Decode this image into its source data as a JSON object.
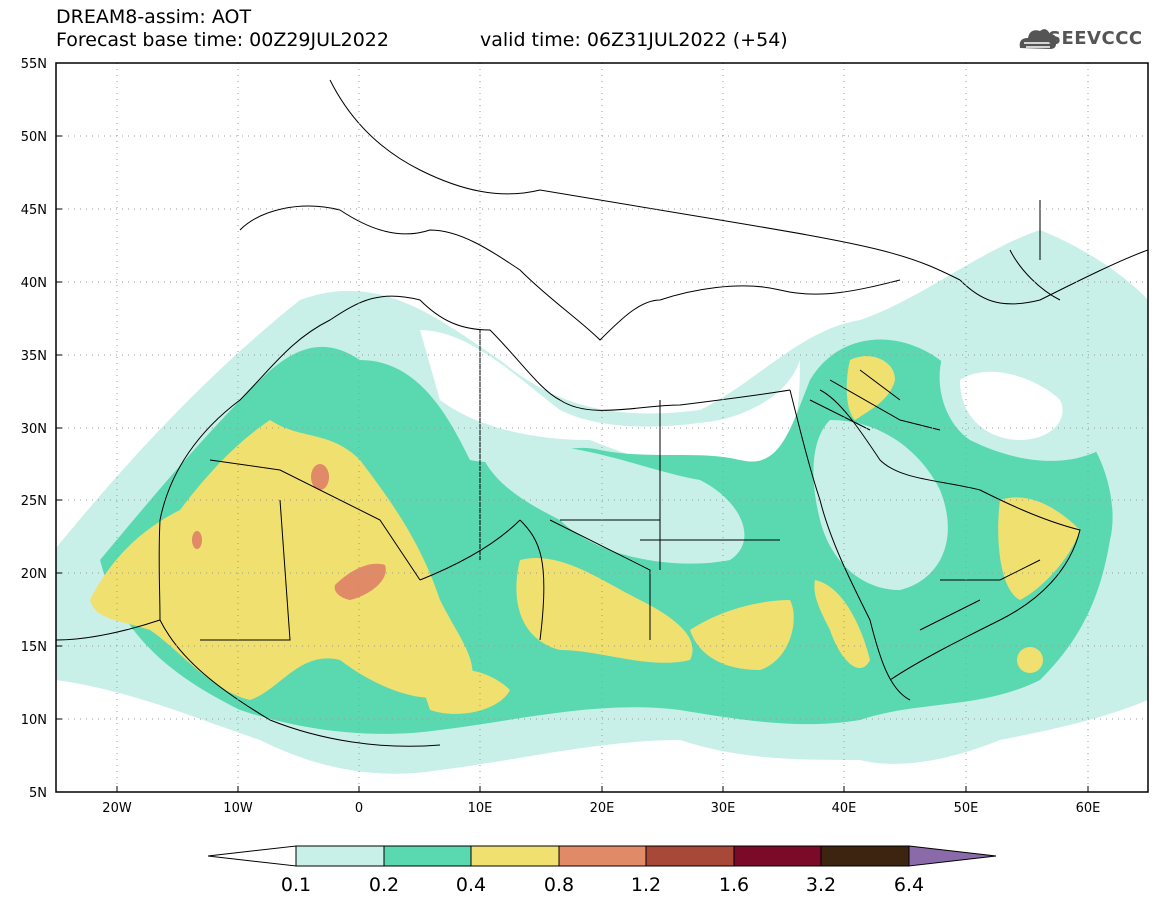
{
  "header": {
    "title": "DREAM8-assim: AOT",
    "forecast_base": "Forecast base time: 00Z29JUL2022",
    "valid_time": "valid time: 06Z31JUL2022 (+54)"
  },
  "logo": {
    "text": "SEEVCCC",
    "icon": "cloud-icon"
  },
  "map": {
    "lon_range": [
      -25,
      65
    ],
    "lat_range": [
      5,
      55
    ],
    "lat_labels": [
      "55N",
      "50N",
      "45N",
      "40N",
      "35N",
      "30N",
      "25N",
      "20N",
      "15N",
      "10N",
      "5N"
    ],
    "lon_labels": [
      "20W",
      "10W",
      "0",
      "10E",
      "20E",
      "30E",
      "40E",
      "50E",
      "60E"
    ]
  },
  "colorbar": {
    "labels": [
      "0.1",
      "0.2",
      "0.4",
      "0.8",
      "1.2",
      "1.6",
      "3.2",
      "6.4"
    ],
    "colors": [
      "#ffffff",
      "#c8f0e8",
      "#5ad9b0",
      "#f0e070",
      "#e08a68",
      "#a84838",
      "#7a0a28",
      "#3c2410",
      "#8a6aa8"
    ]
  }
}
